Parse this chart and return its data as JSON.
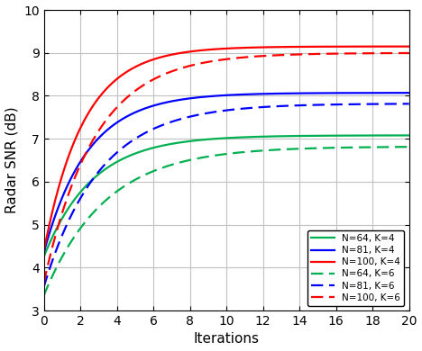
{
  "title": "",
  "xlabel": "Iterations",
  "ylabel": "Radar SNR (dB)",
  "xlim": [
    0,
    20
  ],
  "ylim": [
    3,
    10
  ],
  "xticks": [
    0,
    2,
    4,
    6,
    8,
    10,
    12,
    14,
    16,
    18,
    20
  ],
  "yticks": [
    3,
    4,
    5,
    6,
    7,
    8,
    9,
    10
  ],
  "curves": [
    {
      "label": "N=64, K=4",
      "color": "#00b050",
      "linestyle": "solid",
      "linewidth": 1.6,
      "start": 4.25,
      "plateau": 7.08,
      "rate": 0.38
    },
    {
      "label": "N=81, K=4",
      "color": "#0000ff",
      "linestyle": "solid",
      "linewidth": 1.6,
      "start": 4.35,
      "plateau": 8.07,
      "rate": 0.42
    },
    {
      "label": "N=100, K=4",
      "color": "#ff0000",
      "linestyle": "solid",
      "linewidth": 1.6,
      "start": 4.38,
      "plateau": 9.15,
      "rate": 0.46
    },
    {
      "label": "N=64, K=6",
      "color": "#00b050",
      "linestyle": "dashed",
      "linewidth": 1.6,
      "start": 3.35,
      "plateau": 6.82,
      "rate": 0.3
    },
    {
      "label": "N=81, K=6",
      "color": "#0000ff",
      "linestyle": "dashed",
      "linewidth": 1.6,
      "start": 3.55,
      "plateau": 7.82,
      "rate": 0.33
    },
    {
      "label": "N=100, K=6",
      "color": "#ff0000",
      "linestyle": "dashed",
      "linewidth": 1.6,
      "start": 3.65,
      "plateau": 9.0,
      "rate": 0.36
    }
  ],
  "legend_loc": "lower right",
  "legend_fontsize": 7.5,
  "grid_color": "#c0c0c0",
  "background_color": "#ffffff",
  "tick_fontsize": 10,
  "label_fontsize": 11,
  "dashes": [
    6,
    3
  ]
}
